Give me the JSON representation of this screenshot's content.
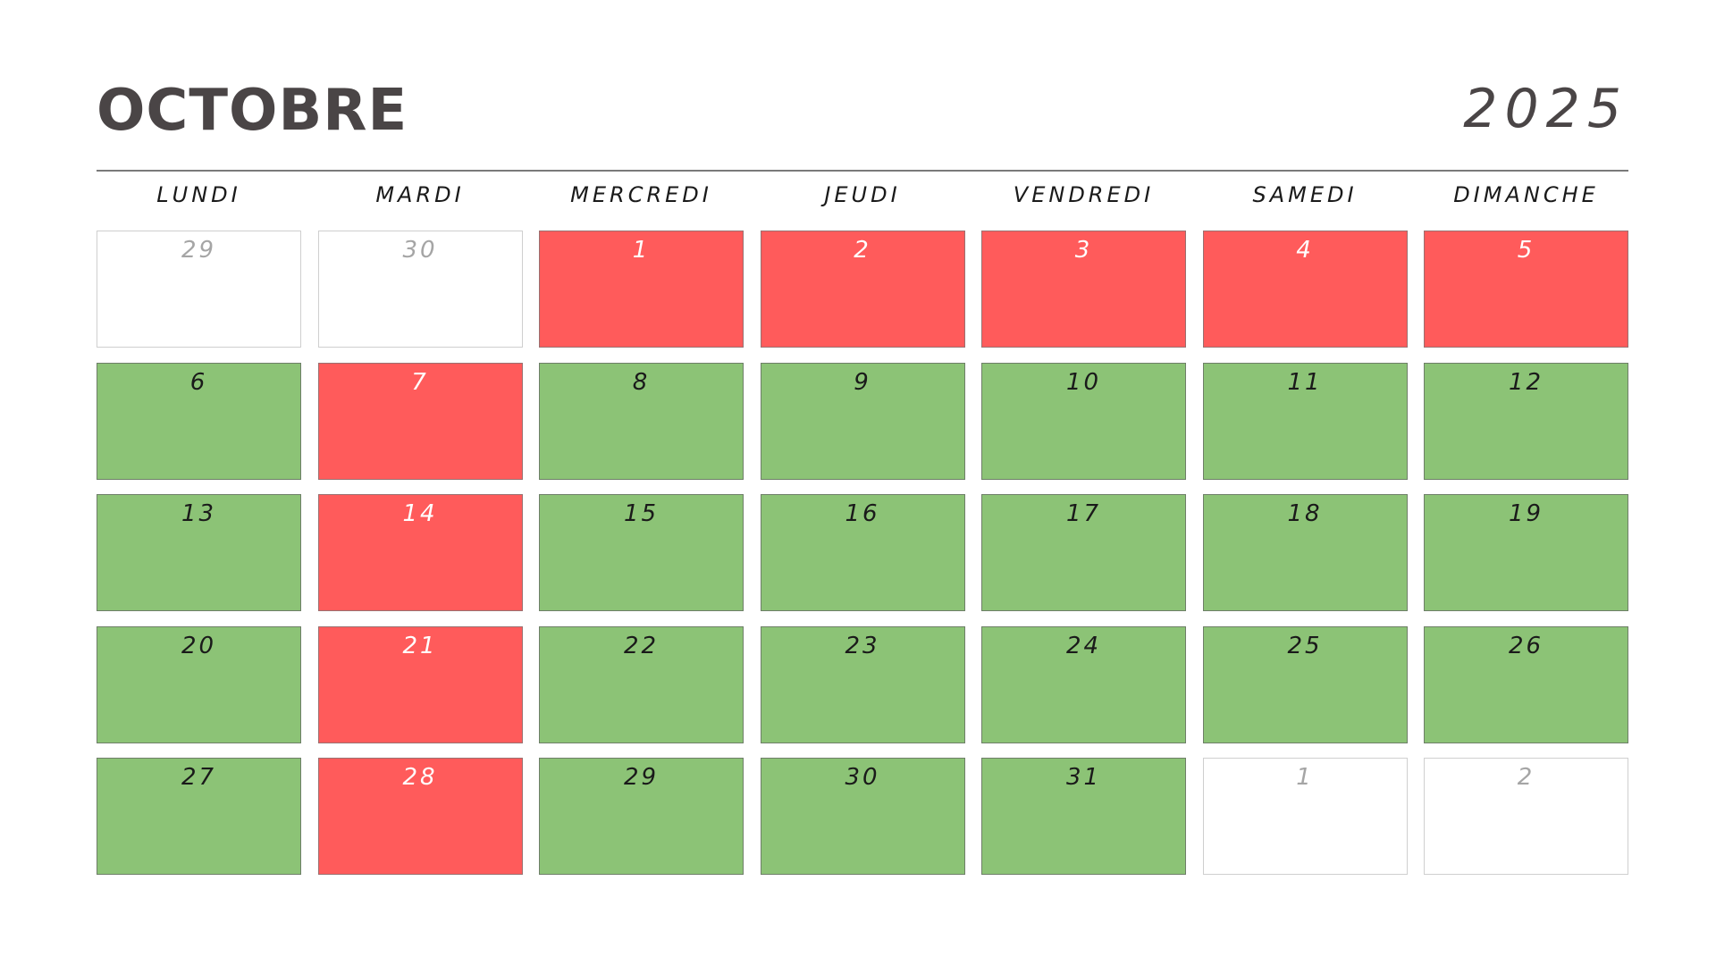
{
  "header": {
    "month": "OCTOBRE",
    "year": "2025"
  },
  "weekdays": [
    "LUNDI",
    "MARDI",
    "MERCREDI",
    "JEUDI",
    "VENDREDI",
    "SAMEDI",
    "DIMANCHE"
  ],
  "colors": {
    "booked": "#ff5b5b",
    "free": "#8cc376",
    "outside_month": "#ffffff"
  },
  "days": [
    {
      "day": "29",
      "status": "other"
    },
    {
      "day": "30",
      "status": "other"
    },
    {
      "day": "1",
      "status": "booked"
    },
    {
      "day": "2",
      "status": "booked"
    },
    {
      "day": "3",
      "status": "booked"
    },
    {
      "day": "4",
      "status": "booked"
    },
    {
      "day": "5",
      "status": "booked"
    },
    {
      "day": "6",
      "status": "free"
    },
    {
      "day": "7",
      "status": "booked"
    },
    {
      "day": "8",
      "status": "free"
    },
    {
      "day": "9",
      "status": "free"
    },
    {
      "day": "10",
      "status": "free"
    },
    {
      "day": "11",
      "status": "free"
    },
    {
      "day": "12",
      "status": "free"
    },
    {
      "day": "13",
      "status": "free"
    },
    {
      "day": "14",
      "status": "booked"
    },
    {
      "day": "15",
      "status": "free"
    },
    {
      "day": "16",
      "status": "free"
    },
    {
      "day": "17",
      "status": "free"
    },
    {
      "day": "18",
      "status": "free"
    },
    {
      "day": "19",
      "status": "free"
    },
    {
      "day": "20",
      "status": "free"
    },
    {
      "day": "21",
      "status": "booked"
    },
    {
      "day": "22",
      "status": "free"
    },
    {
      "day": "23",
      "status": "free"
    },
    {
      "day": "24",
      "status": "free"
    },
    {
      "day": "25",
      "status": "free"
    },
    {
      "day": "26",
      "status": "free"
    },
    {
      "day": "27",
      "status": "free"
    },
    {
      "day": "28",
      "status": "booked"
    },
    {
      "day": "29",
      "status": "free"
    },
    {
      "day": "30",
      "status": "free"
    },
    {
      "day": "31",
      "status": "free"
    },
    {
      "day": "1",
      "status": "other"
    },
    {
      "day": "2",
      "status": "other"
    }
  ]
}
